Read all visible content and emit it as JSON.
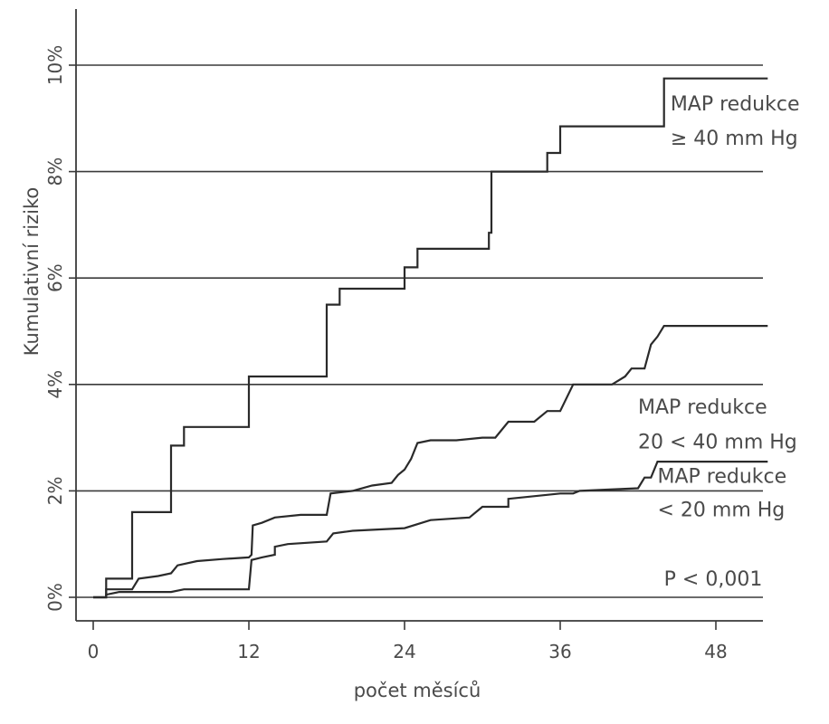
{
  "chart_data": {
    "type": "line",
    "title": "",
    "xlabel": "počet měsíců",
    "ylabel": "Kumulativní riziko",
    "xlim": [
      0,
      52
    ],
    "ylim": [
      0,
      10
    ],
    "x_ticks": [
      0,
      12,
      24,
      36,
      48
    ],
    "x_tick_labels": [
      "0",
      "12",
      "24",
      "36",
      "48"
    ],
    "y_ticks": [
      0,
      2,
      4,
      6,
      8,
      10
    ],
    "y_tick_labels": [
      "0%",
      "2%",
      "4%",
      "6%",
      "8%",
      "10%"
    ],
    "grid": "horizontal",
    "step": true,
    "series": [
      {
        "name": "MAP redukce ≥ 40 mm Hg",
        "points": [
          [
            0,
            0
          ],
          [
            1,
            0
          ],
          [
            1,
            0.35
          ],
          [
            3,
            0.35
          ],
          [
            3,
            1.6
          ],
          [
            6,
            1.6
          ],
          [
            6,
            2.85
          ],
          [
            7,
            2.85
          ],
          [
            7,
            3.2
          ],
          [
            12,
            3.2
          ],
          [
            12,
            4.15
          ],
          [
            18,
            4.15
          ],
          [
            18,
            5.5
          ],
          [
            19,
            5.5
          ],
          [
            19,
            5.8
          ],
          [
            24,
            5.8
          ],
          [
            24,
            6.2
          ],
          [
            25,
            6.2
          ],
          [
            25,
            6.55
          ],
          [
            30.5,
            6.55
          ],
          [
            30.5,
            6.85
          ],
          [
            30.7,
            6.85
          ],
          [
            30.7,
            8.0
          ],
          [
            35,
            8.0
          ],
          [
            35,
            8.35
          ],
          [
            36,
            8.35
          ],
          [
            36,
            8.85
          ],
          [
            44,
            8.85
          ],
          [
            44,
            9.75
          ],
          [
            52,
            9.75
          ]
        ]
      },
      {
        "name": "MAP redukce 20 < 40 mm Hg",
        "points": [
          [
            0,
            0
          ],
          [
            1,
            0
          ],
          [
            1,
            0.15
          ],
          [
            3,
            0.15
          ],
          [
            3.5,
            0.35
          ],
          [
            5,
            0.4
          ],
          [
            6,
            0.45
          ],
          [
            6.5,
            0.6
          ],
          [
            8,
            0.68
          ],
          [
            10,
            0.72
          ],
          [
            12,
            0.75
          ],
          [
            12.2,
            0.8
          ],
          [
            12.3,
            1.35
          ],
          [
            13,
            1.4
          ],
          [
            14,
            1.5
          ],
          [
            16,
            1.55
          ],
          [
            18,
            1.55
          ],
          [
            18.3,
            1.95
          ],
          [
            20,
            2.0
          ],
          [
            21.5,
            2.1
          ],
          [
            23,
            2.15
          ],
          [
            23.5,
            2.3
          ],
          [
            24,
            2.4
          ],
          [
            24.5,
            2.6
          ],
          [
            25,
            2.9
          ],
          [
            26,
            2.95
          ],
          [
            28,
            2.95
          ],
          [
            30,
            3.0
          ],
          [
            31,
            3.0
          ],
          [
            32,
            3.3
          ],
          [
            34,
            3.3
          ],
          [
            35,
            3.5
          ],
          [
            36,
            3.5
          ],
          [
            37,
            4.0
          ],
          [
            40,
            4.0
          ],
          [
            41,
            4.15
          ],
          [
            41.5,
            4.3
          ],
          [
            42.5,
            4.3
          ],
          [
            43,
            4.75
          ],
          [
            43.5,
            4.9
          ],
          [
            44,
            5.1
          ],
          [
            52,
            5.1
          ]
        ]
      },
      {
        "name": "MAP redukce < 20 mm Hg",
        "points": [
          [
            0,
            0
          ],
          [
            1,
            0
          ],
          [
            1,
            0.05
          ],
          [
            2,
            0.1
          ],
          [
            6,
            0.1
          ],
          [
            7,
            0.15
          ],
          [
            12,
            0.15
          ],
          [
            12.2,
            0.7
          ],
          [
            13,
            0.75
          ],
          [
            14,
            0.8
          ],
          [
            14,
            0.95
          ],
          [
            15,
            1.0
          ],
          [
            18,
            1.05
          ],
          [
            18.5,
            1.2
          ],
          [
            20,
            1.25
          ],
          [
            24,
            1.3
          ],
          [
            26,
            1.45
          ],
          [
            29,
            1.5
          ],
          [
            30,
            1.7
          ],
          [
            32,
            1.7
          ],
          [
            32,
            1.85
          ],
          [
            36,
            1.95
          ],
          [
            37,
            1.95
          ],
          [
            37.5,
            2.0
          ],
          [
            42,
            2.05
          ],
          [
            42.5,
            2.25
          ],
          [
            43,
            2.25
          ],
          [
            43.5,
            2.55
          ],
          [
            52,
            2.55
          ]
        ]
      }
    ],
    "annotations": [
      {
        "text": "MAP redukce",
        "x": 44.5,
        "y": 9.15
      },
      {
        "text": "≥ 40 mm Hg",
        "x": 44.5,
        "y": 8.5
      },
      {
        "text": "MAP redukce",
        "x": 42,
        "y": 3.45
      },
      {
        "text": "20 < 40 mm Hg",
        "x": 42,
        "y": 2.8
      },
      {
        "text": "MAP redukce",
        "x": 43.5,
        "y": 2.15
      },
      {
        "text": "< 20 mm Hg",
        "x": 43.5,
        "y": 1.52
      },
      {
        "text": "P < 0,001",
        "x": 44,
        "y": 0.22
      }
    ]
  }
}
